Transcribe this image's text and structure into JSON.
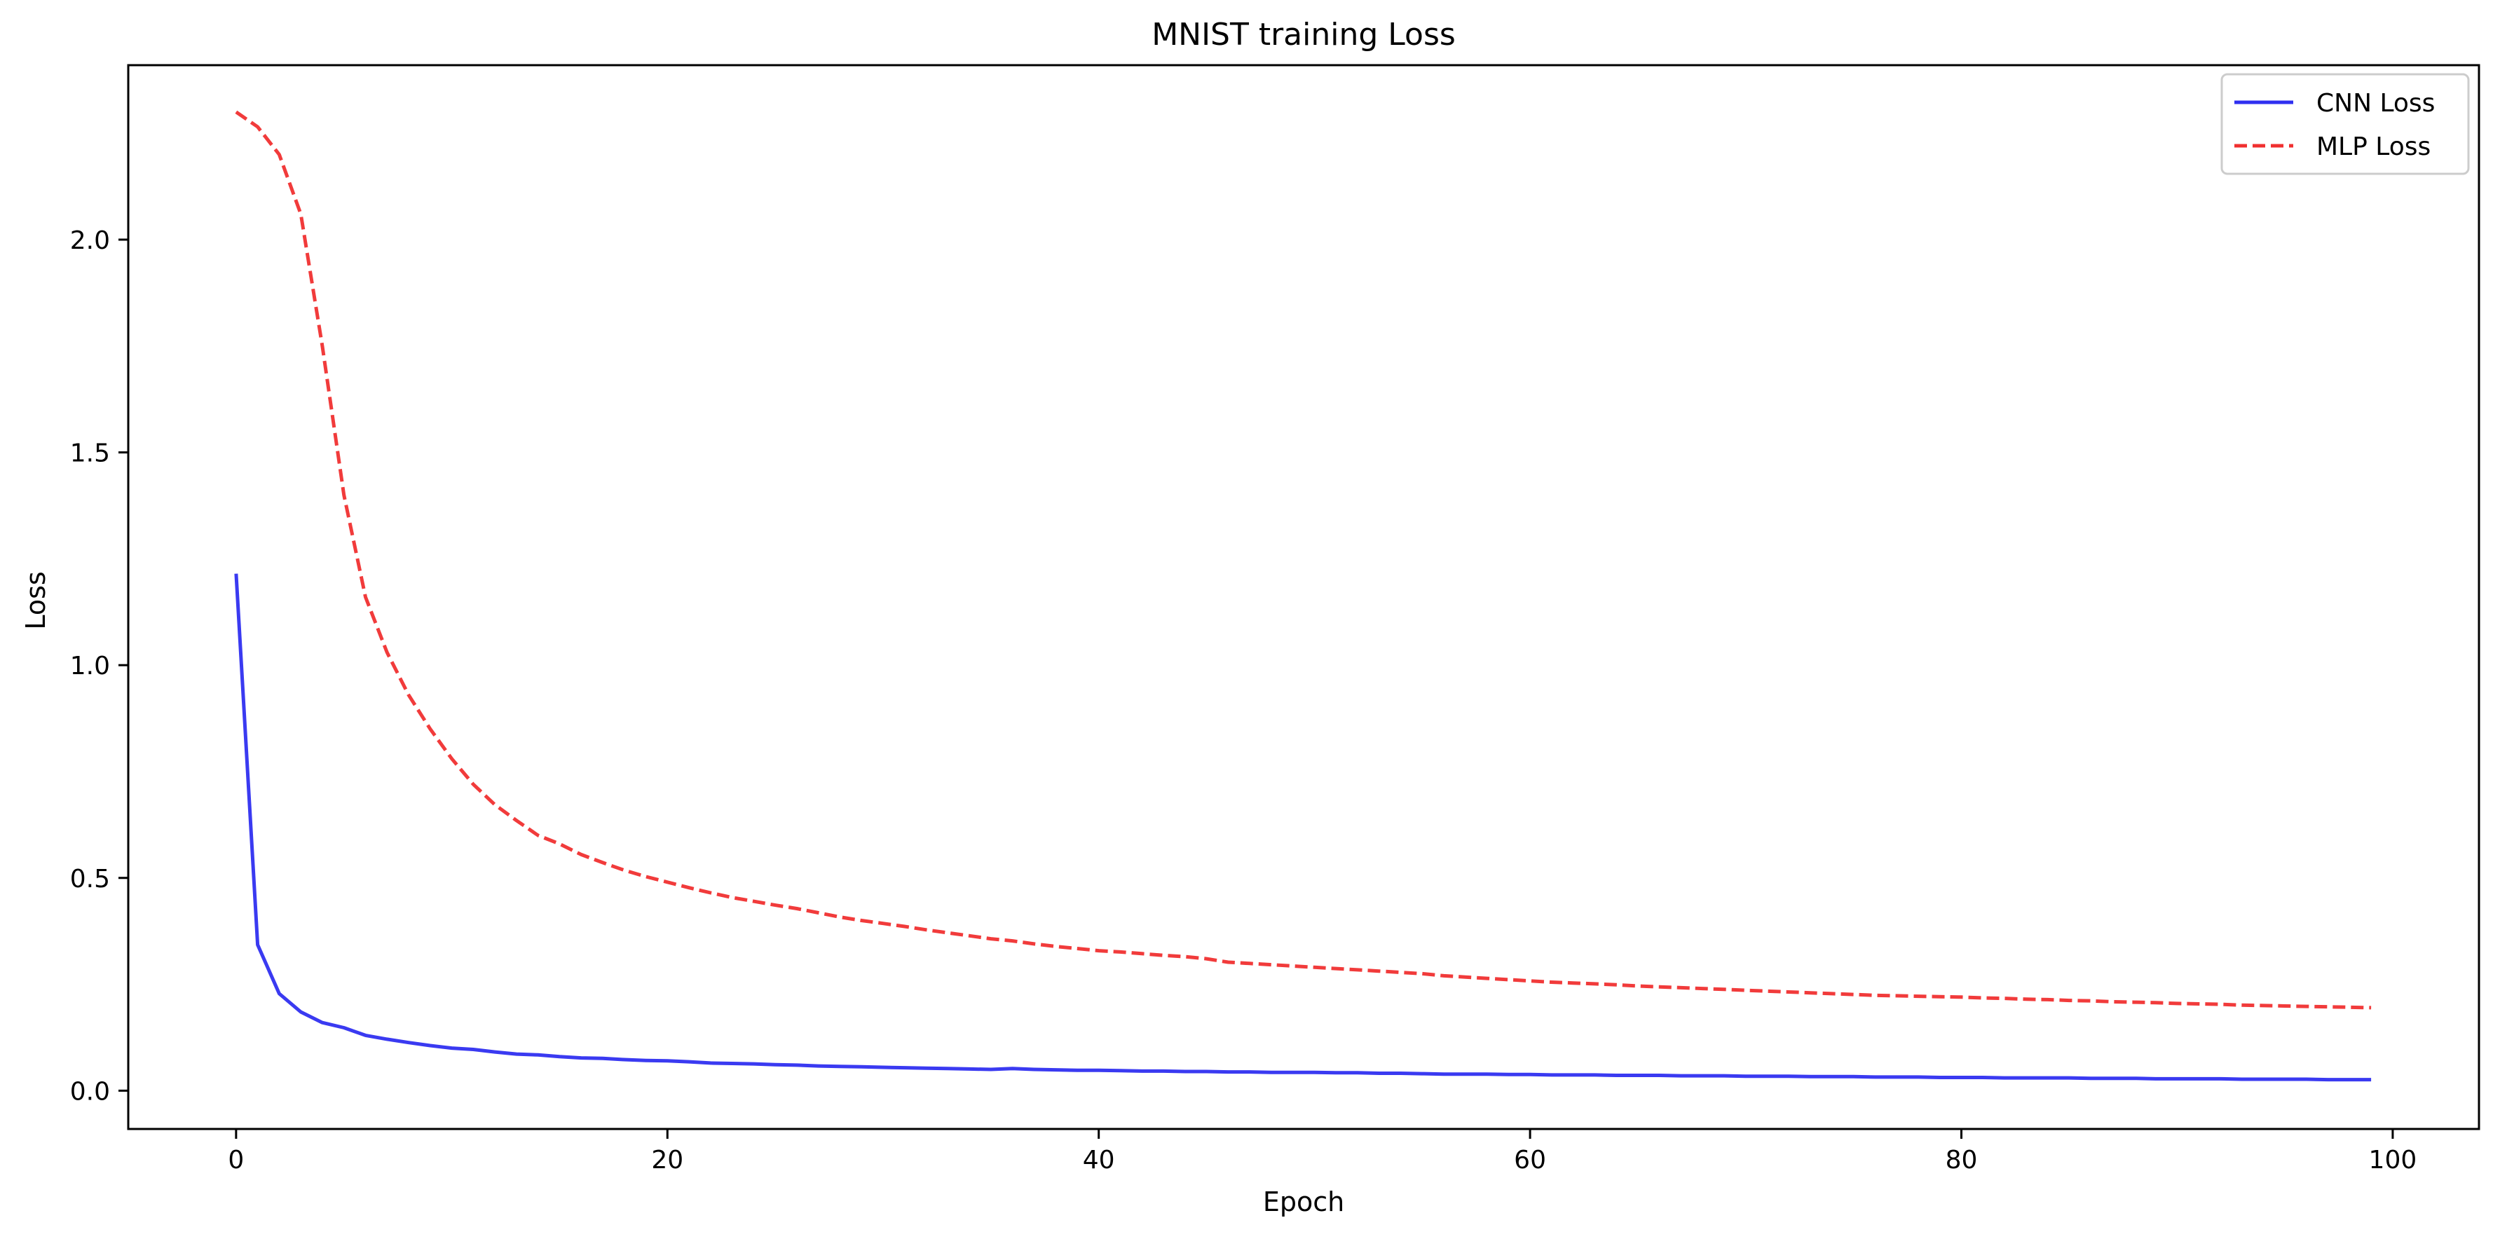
{
  "chart_data": {
    "type": "line",
    "title": "MNIST training Loss",
    "xlabel": "Epoch",
    "ylabel": "Loss",
    "xlim": [
      -5,
      104
    ],
    "ylim": [
      -0.09,
      2.41
    ],
    "x_ticks": [
      0,
      20,
      40,
      60,
      80,
      100
    ],
    "x_tick_labels": [
      "0",
      "20",
      "40",
      "60",
      "80",
      "100"
    ],
    "y_ticks": [
      0.0,
      0.5,
      1.0,
      1.5,
      2.0
    ],
    "y_tick_labels": [
      "0.0",
      "0.5",
      "1.0",
      "1.5",
      "2.0"
    ],
    "grid": false,
    "legend_position": "top-right",
    "x": [
      0,
      1,
      2,
      3,
      4,
      5,
      6,
      7,
      8,
      9,
      10,
      11,
      12,
      13,
      14,
      15,
      16,
      17,
      18,
      19,
      20,
      21,
      22,
      23,
      24,
      25,
      26,
      27,
      28,
      29,
      30,
      31,
      32,
      33,
      34,
      35,
      36,
      37,
      38,
      39,
      40,
      41,
      42,
      43,
      44,
      45,
      46,
      47,
      48,
      49,
      50,
      51,
      52,
      53,
      54,
      55,
      56,
      57,
      58,
      59,
      60,
      61,
      62,
      63,
      64,
      65,
      66,
      67,
      68,
      69,
      70,
      71,
      72,
      73,
      74,
      75,
      76,
      77,
      78,
      79,
      80,
      81,
      82,
      83,
      84,
      85,
      86,
      87,
      88,
      89,
      90,
      91,
      92,
      93,
      94,
      95,
      96,
      97,
      98,
      99
    ],
    "series": [
      {
        "name": "CNN Loss",
        "color": "#2f2ff0",
        "style": "solid",
        "values": [
          1.215,
          0.343,
          0.228,
          0.185,
          0.16,
          0.148,
          0.13,
          0.121,
          0.113,
          0.106,
          0.1,
          0.097,
          0.091,
          0.086,
          0.084,
          0.08,
          0.077,
          0.076,
          0.073,
          0.071,
          0.07,
          0.068,
          0.065,
          0.064,
          0.063,
          0.061,
          0.06,
          0.058,
          0.057,
          0.056,
          0.055,
          0.054,
          0.053,
          0.052,
          0.051,
          0.05,
          0.052,
          0.05,
          0.049,
          0.048,
          0.048,
          0.047,
          0.046,
          0.046,
          0.045,
          0.045,
          0.044,
          0.044,
          0.043,
          0.043,
          0.043,
          0.042,
          0.042,
          0.041,
          0.041,
          0.04,
          0.039,
          0.039,
          0.039,
          0.038,
          0.038,
          0.037,
          0.037,
          0.037,
          0.036,
          0.036,
          0.036,
          0.035,
          0.035,
          0.035,
          0.034,
          0.034,
          0.034,
          0.033,
          0.033,
          0.033,
          0.032,
          0.032,
          0.032,
          0.031,
          0.031,
          0.031,
          0.03,
          0.03,
          0.03,
          0.03,
          0.029,
          0.029,
          0.029,
          0.028,
          0.028,
          0.028,
          0.028,
          0.027,
          0.027,
          0.027,
          0.027,
          0.026,
          0.026,
          0.026
        ]
      },
      {
        "name": "MLP Loss",
        "color": "#f03030",
        "style": "dashed",
        "values": [
          2.3,
          2.265,
          2.2,
          2.06,
          1.75,
          1.4,
          1.16,
          1.03,
          0.93,
          0.85,
          0.78,
          0.72,
          0.672,
          0.635,
          0.6,
          0.58,
          0.555,
          0.536,
          0.518,
          0.503,
          0.49,
          0.477,
          0.465,
          0.454,
          0.445,
          0.436,
          0.428,
          0.418,
          0.408,
          0.4,
          0.393,
          0.386,
          0.378,
          0.371,
          0.364,
          0.357,
          0.352,
          0.345,
          0.339,
          0.334,
          0.329,
          0.326,
          0.322,
          0.318,
          0.315,
          0.31,
          0.302,
          0.299,
          0.296,
          0.293,
          0.29,
          0.287,
          0.284,
          0.281,
          0.278,
          0.275,
          0.27,
          0.267,
          0.264,
          0.261,
          0.258,
          0.255,
          0.253,
          0.251,
          0.249,
          0.246,
          0.244,
          0.242,
          0.24,
          0.238,
          0.236,
          0.234,
          0.232,
          0.23,
          0.228,
          0.226,
          0.224,
          0.223,
          0.222,
          0.221,
          0.22,
          0.218,
          0.217,
          0.215,
          0.214,
          0.212,
          0.211,
          0.209,
          0.208,
          0.207,
          0.205,
          0.204,
          0.203,
          0.201,
          0.2,
          0.199,
          0.198,
          0.197,
          0.196,
          0.195
        ]
      }
    ]
  }
}
